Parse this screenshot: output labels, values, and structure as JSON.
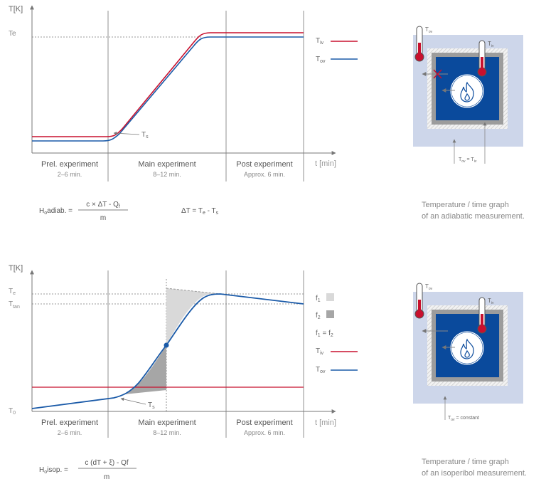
{
  "colors": {
    "red": "#c8102e",
    "blue": "#1a5aa8",
    "darkblue": "#0a4a9c",
    "grid": "#888888",
    "axis": "#777777",
    "text": "#666666",
    "lightblue_bg": "#cdd6ea",
    "light_fill": "#d9d9d9",
    "dark_fill": "#a6a6a6"
  },
  "top_graph": {
    "y_axis_label": "T[K]",
    "x_axis_label": "t [min]",
    "y_tick": "Te",
    "phases": [
      {
        "title": "Prel. experiment",
        "sub": "2–6 min."
      },
      {
        "title": "Main experiment",
        "sub": "8–12 min."
      },
      {
        "title": "Post experiment",
        "sub": "Approx. 6 min."
      }
    ],
    "legend": [
      {
        "label": "T",
        "sub": "iv",
        "color": "#c8102e"
      },
      {
        "label": "T",
        "sub": "ov",
        "color": "#1a5aa8"
      }
    ],
    "ts_label": "T",
    "ts_sub": "s",
    "formula_lhs_main": "H",
    "formula_lhs_sub": "o",
    "formula_lhs_rest": "adiab. =",
    "formula_num": "c × ΔT - Q",
    "formula_num_sub": "f",
    "formula_den": "m",
    "delta_formula": "ΔT = T",
    "delta_sub1": "e",
    "delta_mid": " - T",
    "delta_sub2": "s"
  },
  "bottom_graph": {
    "y_axis_label": "T[K]",
    "x_axis_label": "t [min]",
    "y_ticks": [
      {
        "main": "T",
        "sub": "e"
      },
      {
        "main": "T",
        "sub": "tan"
      },
      {
        "main": "T",
        "sub": "0"
      }
    ],
    "phases": [
      {
        "title": "Prel. experiment",
        "sub": "2–6 min."
      },
      {
        "title": "Main experiment",
        "sub": "8–12 min."
      },
      {
        "title": "Post experiment",
        "sub": "Approx. 6 min."
      }
    ],
    "legend_f1": "f",
    "legend_f1_sub": "1",
    "legend_f2": "f",
    "legend_f2_sub": "2",
    "legend_eq": "f",
    "legend_eq_sub1": "1",
    "legend_eq_mid": " = f",
    "legend_eq_sub2": "2",
    "legend": [
      {
        "label": "T",
        "sub": "iv",
        "color": "#c8102e"
      },
      {
        "label": "T",
        "sub": "ov",
        "color": "#1a5aa8"
      }
    ],
    "ts_label": "T",
    "ts_sub": "s",
    "formula_lhs_main": "H",
    "formula_lhs_sub": "o",
    "formula_lhs_rest": "isop. =",
    "formula_num": "c (dT + ξ) - Qf",
    "formula_den": "m"
  },
  "top_diagram": {
    "tov": "T",
    "tov_sub": "ov",
    "tiv": "T",
    "tiv_sub": "iv",
    "bottom_label": "T",
    "bottom_label_sub": "ov",
    "bottom_label_mid": " = T",
    "bottom_label_sub2": "iv",
    "caption_line1": "Temperature / time graph",
    "caption_line2": "of an adiabatic measurement."
  },
  "bottom_diagram": {
    "tov": "T",
    "tov_sub": "ov",
    "tiv": "T",
    "tiv_sub": "iv",
    "bottom_label": "T",
    "bottom_label_sub": "ov",
    "bottom_label_rest": " = constant",
    "caption_line1": "Temperature / time graph",
    "caption_line2": "of an isoperibol measurement."
  }
}
